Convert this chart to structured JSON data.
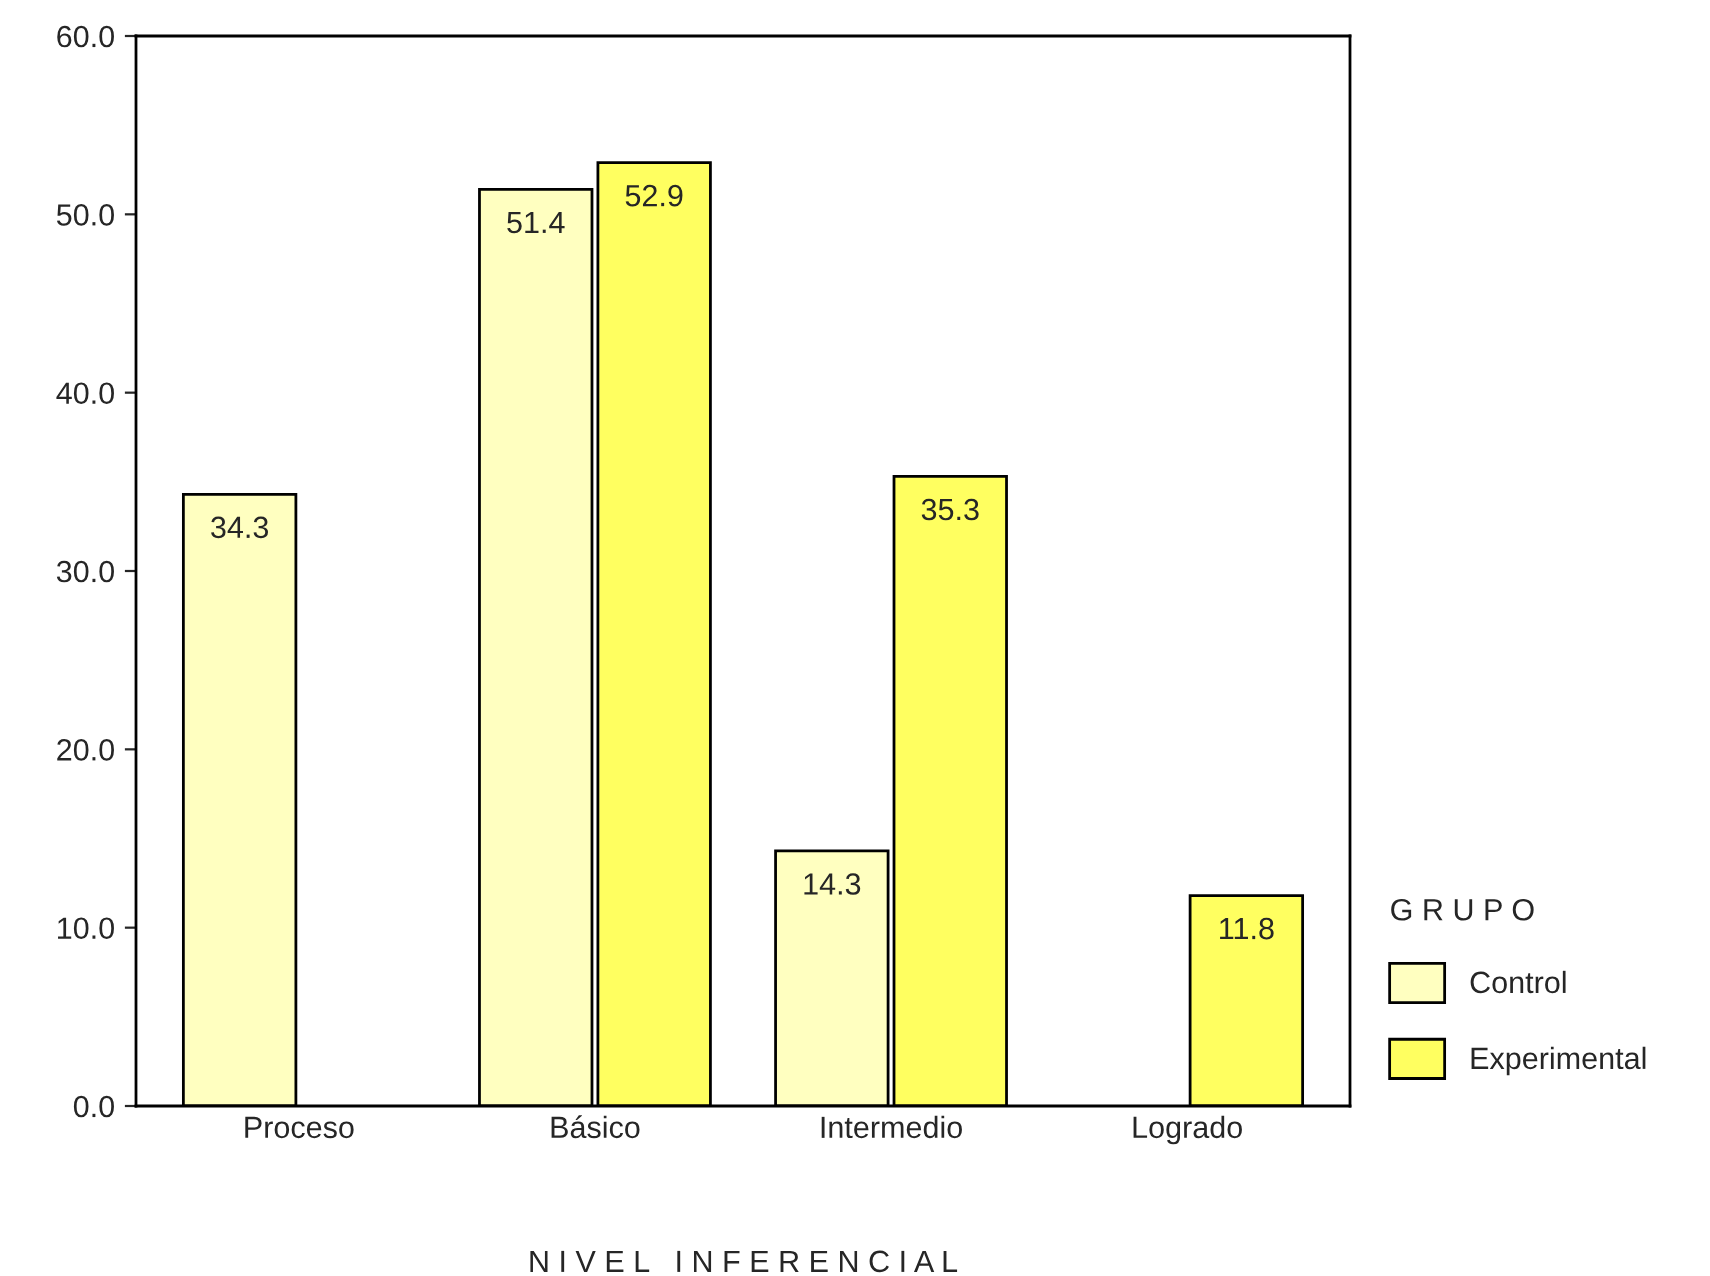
{
  "chart_data": {
    "type": "bar",
    "xlabel": "N I V E L   I N F E R E N C I A L",
    "legend_title": "G R U P O",
    "categories": [
      "Proceso",
      "Básico",
      "Intermedio",
      "Logrado"
    ],
    "series": [
      {
        "name": "Control",
        "color": "#ffffc0",
        "values": [
          34.3,
          51.4,
          14.3,
          null
        ]
      },
      {
        "name": "Experimental",
        "color": "#ffff60",
        "values": [
          null,
          52.9,
          35.3,
          11.8
        ]
      }
    ],
    "ylim": [
      0,
      60
    ],
    "yticks": [
      {
        "value": 0,
        "label": "0.0"
      },
      {
        "value": 10,
        "label": "10.0"
      },
      {
        "value": 20,
        "label": "20.0"
      },
      {
        "value": 30,
        "label": "30.0"
      },
      {
        "value": 40,
        "label": "40.0"
      },
      {
        "value": 50,
        "label": "50.0"
      },
      {
        "value": 60,
        "label": "60.0"
      }
    ],
    "data_labels": true,
    "grid": false,
    "legend": "bottom right"
  }
}
